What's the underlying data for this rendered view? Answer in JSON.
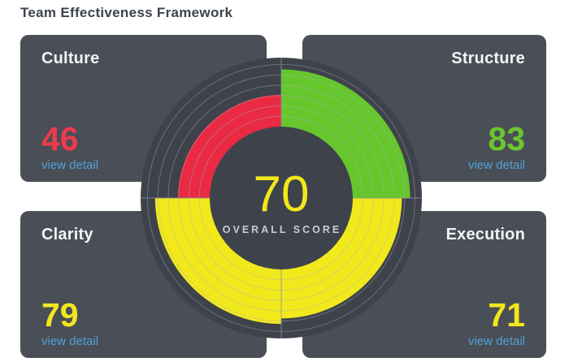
{
  "page": {
    "title": "Team Effectiveness Framework"
  },
  "panels": [
    {
      "label": "Culture",
      "score": "46",
      "score_color": "#ee3a4d",
      "link": "view detail"
    },
    {
      "label": "Structure",
      "score": "83",
      "score_color": "#6bc72d",
      "link": "view detail"
    },
    {
      "label": "Clarity",
      "score": "79",
      "score_color": "#f2e71d",
      "link": "view detail"
    },
    {
      "label": "Execution",
      "score": "71",
      "score_color": "#f2e71d",
      "link": "view detail"
    }
  ],
  "gauge": {
    "overall_score": "70",
    "overall_label": "OVERALL SCORE",
    "score_color": "#f2e71d",
    "label_color": "#c9ccd0"
  },
  "chart_data": {
    "type": "radial-quadrant-gauge",
    "title": "Team Effectiveness Framework",
    "overall": 70,
    "scale": [
      0,
      100
    ],
    "series": [
      {
        "name": "Culture",
        "value": 46,
        "quadrant": "top-left",
        "color": "#e92a42"
      },
      {
        "name": "Structure",
        "value": 83,
        "quadrant": "top-right",
        "color": "#66c72d"
      },
      {
        "name": "Execution",
        "value": 71,
        "quadrant": "bottom-right",
        "color": "#f2e91c"
      },
      {
        "name": "Clarity",
        "value": 79,
        "quadrant": "bottom-left",
        "color": "#f2e91c"
      }
    ],
    "gridline_values": [
      15,
      30,
      45,
      60,
      75,
      90
    ],
    "inner_radius_px": 88,
    "outer_radius_px": 173,
    "colors": {
      "panel": "#4a4e56",
      "disc": "#3e434b",
      "gridline": "#aab0b8",
      "separator": "#8b9098"
    }
  }
}
